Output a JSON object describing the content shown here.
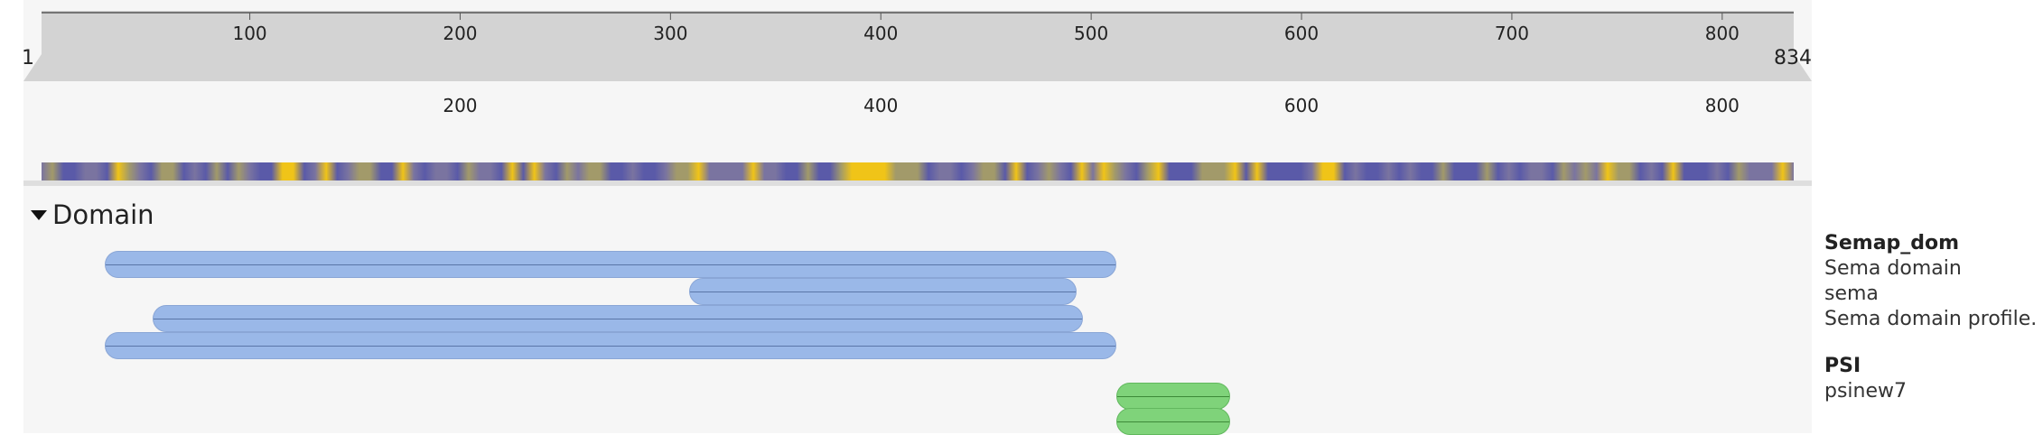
{
  "ruler": {
    "start_label": "1",
    "end_label": "834",
    "top_ticks": [
      "100",
      "200",
      "300",
      "400",
      "500",
      "600",
      "700",
      "800"
    ],
    "bottom_ticks": [
      "200",
      "400",
      "600",
      "800"
    ]
  },
  "section": {
    "title": "Domain"
  },
  "features": {
    "semap_dom": [
      {
        "start": 31,
        "end": 512,
        "track": "blue"
      },
      {
        "start": 309,
        "end": 493,
        "track": "blue"
      },
      {
        "start": 54,
        "end": 496,
        "track": "blue"
      },
      {
        "start": 31,
        "end": 512,
        "track": "blue"
      }
    ],
    "psi": [
      {
        "start": 512,
        "end": 566,
        "track": "green"
      },
      {
        "start": 512,
        "end": 566,
        "track": "green"
      }
    ]
  },
  "legend": {
    "group1": {
      "title": "Semap_dom",
      "lines": [
        "Sema domain",
        "sema",
        "Sema domain profile."
      ]
    },
    "group2": {
      "title": "PSI",
      "lines": [
        "psinew7"
      ]
    }
  },
  "colors": {
    "blue_feature": "#9ab8e8",
    "green_feature": "#7fd37a",
    "hydro_low": "#5a5aa8",
    "hydro_high": "#f0c418"
  }
}
